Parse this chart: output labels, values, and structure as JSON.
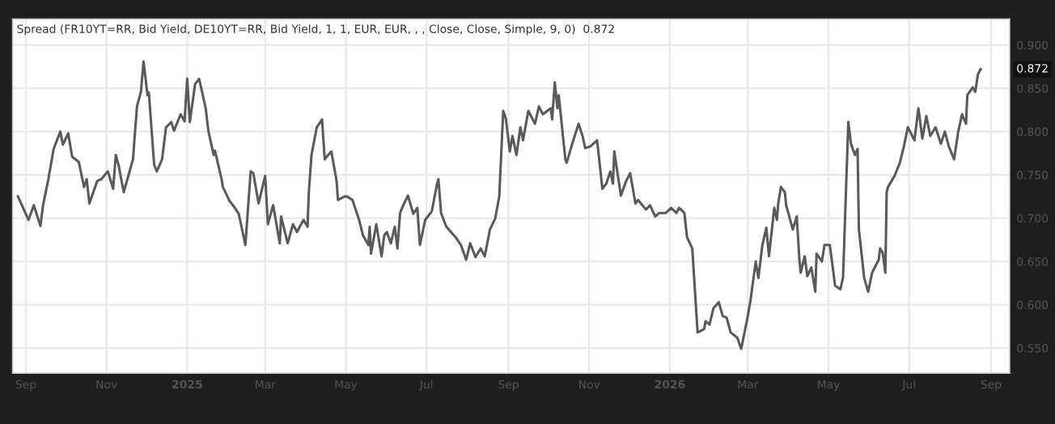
{
  "chart_data": {
    "type": "line",
    "title": "Spread (FR10YT=RR, Bid Yield, DE10YT=RR, Bid Yield, 1, 1, EUR, EUR, , , Close, Close, Simple, 9, 0)  0.872",
    "x": [
      "2024-08-26",
      "2024-09-03",
      "2024-09-07",
      "2024-09-12",
      "2024-09-14",
      "2024-09-18",
      "2024-09-22",
      "2024-09-27",
      "2024-09-29",
      "2024-10-03",
      "2024-10-06",
      "2024-10-11",
      "2024-10-15",
      "2024-10-17",
      "2024-10-19",
      "2024-10-25",
      "2024-10-28",
      "2024-11-02",
      "2024-11-06",
      "2024-11-08",
      "2024-11-10",
      "2024-11-14",
      "2024-11-21",
      "2024-11-24",
      "2024-11-27",
      "2024-11-29",
      "2024-12-02",
      "2024-12-03",
      "2024-12-07",
      "2024-12-09",
      "2024-12-13",
      "2024-12-16",
      "2024-12-20",
      "2024-12-22",
      "2024-12-27",
      "2024-12-30",
      "2025-01-01",
      "2025-01-03",
      "2025-01-07",
      "2025-01-10",
      "2025-01-15",
      "2025-01-17",
      "2025-01-21",
      "2025-01-22",
      "2025-01-27",
      "2025-01-28",
      "2025-02-02",
      "2025-02-06",
      "2025-02-09",
      "2025-02-14",
      "2025-02-18",
      "2025-02-20",
      "2025-02-24",
      "2025-03-01",
      "2025-03-03",
      "2025-03-07",
      "2025-03-12",
      "2025-03-13",
      "2025-03-18",
      "2025-03-22",
      "2025-03-25",
      "2025-03-30",
      "2025-04-02",
      "2025-04-03",
      "2025-04-05",
      "2025-04-09",
      "2025-04-13",
      "2025-04-15",
      "2025-04-17",
      "2025-04-20",
      "2025-04-24",
      "2025-04-25",
      "2025-04-30",
      "2025-05-02",
      "2025-05-06",
      "2025-05-11",
      "2025-05-14",
      "2025-05-18",
      "2025-05-19",
      "2025-05-20",
      "2025-05-24",
      "2025-05-28",
      "2025-05-30",
      "2025-06-01",
      "2025-06-04",
      "2025-06-07",
      "2025-06-09",
      "2025-06-11",
      "2025-06-14",
      "2025-06-17",
      "2025-06-21",
      "2025-06-24",
      "2025-06-26",
      "2025-06-30",
      "2025-07-05",
      "2025-07-09",
      "2025-07-10",
      "2025-07-12",
      "2025-07-16",
      "2025-07-23",
      "2025-07-27",
      "2025-07-31",
      "2025-08-03",
      "2025-08-07",
      "2025-08-11",
      "2025-08-14",
      "2025-08-18",
      "2025-08-22",
      "2025-08-25",
      "2025-08-28",
      "2025-08-30",
      "2025-09-02",
      "2025-09-04",
      "2025-09-07",
      "2025-09-10",
      "2025-09-12",
      "2025-09-16",
      "2025-09-21",
      "2025-09-24",
      "2025-09-27",
      "2025-10-03",
      "2025-10-04",
      "2025-10-06",
      "2025-10-08",
      "2025-10-09",
      "2025-10-14",
      "2025-10-15",
      "2025-10-20",
      "2025-10-24",
      "2025-10-27",
      "2025-10-29",
      "2025-11-02",
      "2025-11-07",
      "2025-11-11",
      "2025-11-14",
      "2025-11-17",
      "2025-11-19",
      "2025-11-20",
      "2025-11-25",
      "2025-11-29",
      "2025-12-02",
      "2025-12-06",
      "2025-12-08",
      "2025-12-14",
      "2025-12-17",
      "2025-12-21",
      "2025-12-24",
      "2025-12-29",
      "2026-01-02",
      "2026-01-06",
      "2026-01-08",
      "2026-01-12",
      "2026-01-14",
      "2026-01-18",
      "2026-01-22",
      "2026-01-27",
      "2026-01-28",
      "2026-01-31",
      "2026-02-03",
      "2026-02-07",
      "2026-02-10",
      "2026-02-13",
      "2026-02-16",
      "2026-02-21",
      "2026-02-24",
      "2026-03-01",
      "2026-03-03",
      "2026-03-07",
      "2026-03-09",
      "2026-03-12",
      "2026-03-15",
      "2026-03-17",
      "2026-03-21",
      "2026-03-23",
      "2026-03-24",
      "2026-03-26",
      "2026-03-29",
      "2026-03-30",
      "2026-04-04",
      "2026-04-07",
      "2026-04-09",
      "2026-04-10",
      "2026-04-13",
      "2026-04-15",
      "2026-04-18",
      "2026-04-21",
      "2026-04-22",
      "2026-04-26",
      "2026-04-28",
      "2026-05-02",
      "2026-05-06",
      "2026-05-10",
      "2026-05-12",
      "2026-05-16",
      "2026-05-18",
      "2026-05-21",
      "2026-05-23",
      "2026-05-24",
      "2026-05-28",
      "2026-05-31",
      "2026-06-03",
      "2026-06-08",
      "2026-06-09",
      "2026-06-11",
      "2026-06-13",
      "2026-06-14",
      "2026-06-15",
      "2026-06-20",
      "2026-06-24",
      "2026-06-27",
      "2026-06-30",
      "2026-07-05",
      "2026-07-08",
      "2026-07-11",
      "2026-07-14",
      "2026-07-17",
      "2026-07-21",
      "2026-07-25",
      "2026-07-28",
      "2026-07-31",
      "2026-08-04",
      "2026-08-07",
      "2026-08-10",
      "2026-08-13",
      "2026-08-14",
      "2026-08-18",
      "2026-08-20",
      "2026-08-22",
      "2026-08-24"
    ],
    "series": [
      {
        "color": "#5a5a5a",
        "values": [
          0.725,
          0.698,
          0.715,
          0.691,
          0.715,
          0.745,
          0.78,
          0.8,
          0.785,
          0.798,
          0.771,
          0.765,
          0.736,
          0.745,
          0.717,
          0.743,
          0.745,
          0.754,
          0.734,
          0.773,
          0.762,
          0.73,
          0.768,
          0.829,
          0.846,
          0.881,
          0.842,
          0.845,
          0.762,
          0.754,
          0.768,
          0.805,
          0.811,
          0.801,
          0.82,
          0.812,
          0.861,
          0.811,
          0.855,
          0.861,
          0.827,
          0.801,
          0.773,
          0.778,
          0.745,
          0.736,
          0.72,
          0.712,
          0.705,
          0.669,
          0.754,
          0.752,
          0.717,
          0.749,
          0.693,
          0.715,
          0.671,
          0.702,
          0.671,
          0.693,
          0.684,
          0.698,
          0.69,
          0.73,
          0.773,
          0.805,
          0.814,
          0.768,
          0.772,
          0.777,
          0.743,
          0.721,
          0.725,
          0.725,
          0.721,
          0.698,
          0.68,
          0.669,
          0.69,
          0.659,
          0.693,
          0.656,
          0.68,
          0.684,
          0.671,
          0.69,
          0.665,
          0.706,
          0.717,
          0.726,
          0.705,
          0.712,
          0.669,
          0.698,
          0.708,
          0.74,
          0.745,
          0.706,
          0.69,
          0.678,
          0.669,
          0.652,
          0.671,
          0.655,
          0.665,
          0.656,
          0.687,
          0.7,
          0.725,
          0.824,
          0.815,
          0.777,
          0.795,
          0.773,
          0.805,
          0.79,
          0.824,
          0.809,
          0.829,
          0.82,
          0.827,
          0.814,
          0.857,
          0.827,
          0.842,
          0.768,
          0.764,
          0.79,
          0.809,
          0.795,
          0.781,
          0.783,
          0.79,
          0.734,
          0.74,
          0.754,
          0.74,
          0.777,
          0.726,
          0.743,
          0.752,
          0.717,
          0.721,
          0.71,
          0.715,
          0.702,
          0.706,
          0.706,
          0.712,
          0.706,
          0.712,
          0.706,
          0.678,
          0.665,
          0.568,
          0.572,
          0.581,
          0.577,
          0.596,
          0.603,
          0.587,
          0.585,
          0.568,
          0.562,
          0.549,
          0.587,
          0.605,
          0.65,
          0.631,
          0.669,
          0.689,
          0.656,
          0.712,
          0.698,
          0.717,
          0.736,
          0.73,
          0.715,
          0.687,
          0.702,
          0.652,
          0.637,
          0.656,
          0.633,
          0.643,
          0.615,
          0.659,
          0.65,
          0.669,
          0.669,
          0.622,
          0.618,
          0.631,
          0.811,
          0.786,
          0.773,
          0.78,
          0.687,
          0.631,
          0.615,
          0.637,
          0.652,
          0.665,
          0.66,
          0.637,
          0.73,
          0.736,
          0.749,
          0.764,
          0.783,
          0.805,
          0.79,
          0.827,
          0.792,
          0.818,
          0.795,
          0.805,
          0.786,
          0.8,
          0.783,
          0.768,
          0.799,
          0.82,
          0.809,
          0.842,
          0.851,
          0.846,
          0.866,
          0.872
        ]
      }
    ],
    "annotations": [
      "0.872"
    ],
    "xlim": [
      "2024-08-22",
      "2026-09-15"
    ],
    "xticks": [
      {
        "value": "2024-09-01",
        "label": "Sep"
      },
      {
        "value": "2024-11-01",
        "label": "Nov"
      },
      {
        "value": "2025-01-01",
        "label": "2025"
      },
      {
        "value": "2025-03-01",
        "label": "Mar"
      },
      {
        "value": "2025-05-01",
        "label": "May"
      },
      {
        "value": "2025-07-01",
        "label": "Jul"
      },
      {
        "value": "2025-09-01",
        "label": "Sep"
      },
      {
        "value": "2025-11-01",
        "label": "Nov"
      },
      {
        "value": "2026-01-01",
        "label": "2026"
      },
      {
        "value": "2026-03-01",
        "label": "Mar"
      },
      {
        "value": "2026-05-01",
        "label": "May"
      },
      {
        "value": "2026-07-01",
        "label": "Jul"
      },
      {
        "value": "2026-09-01",
        "label": "Sep"
      }
    ],
    "ylim": [
      0.521,
      0.93
    ],
    "yticks": [
      {
        "value": 0.55,
        "label": "0.550"
      },
      {
        "value": 0.6,
        "label": "0.600"
      },
      {
        "value": 0.65,
        "label": "0.650"
      },
      {
        "value": 0.7,
        "label": "0.700"
      },
      {
        "value": 0.75,
        "label": "0.750"
      },
      {
        "value": 0.8,
        "label": "0.800"
      },
      {
        "value": 0.85,
        "label": "0.850"
      },
      {
        "value": 0.9,
        "label": "0.900"
      }
    ],
    "grid": true,
    "legend": false,
    "marker": "none",
    "line_style": "solid"
  }
}
